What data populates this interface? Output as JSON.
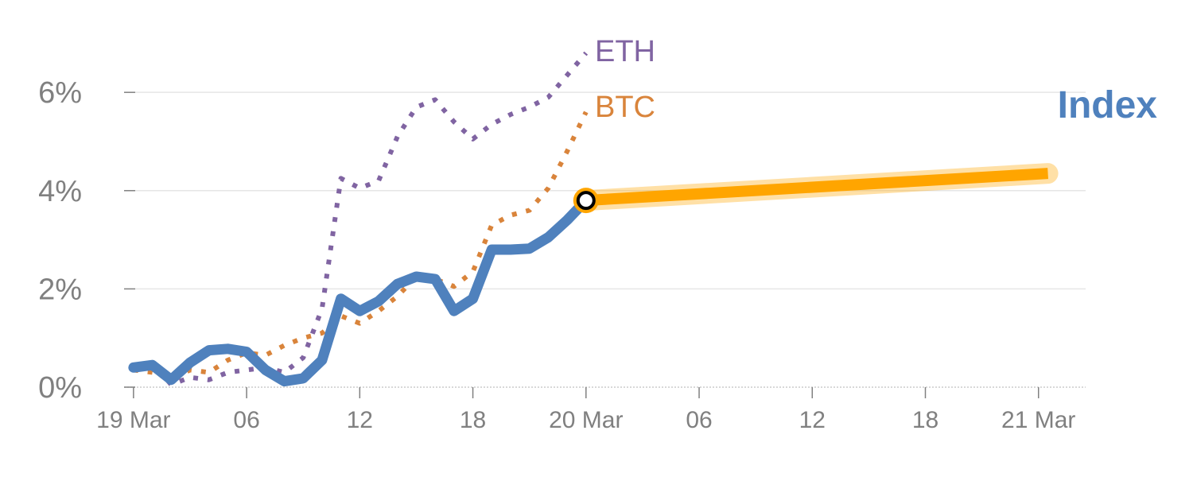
{
  "chart_data": {
    "type": "line",
    "x_tick_labels": [
      "19 Mar",
      "06",
      "12",
      "18",
      "20 Mar",
      "06",
      "12",
      "18",
      "21 Mar"
    ],
    "x_ticks_hours": [
      0,
      6,
      12,
      18,
      24,
      30,
      36,
      42,
      48
    ],
    "x_range_hours": [
      -0.5,
      50.5
    ],
    "y_tick_labels": [
      "0%",
      "2%",
      "4%",
      "6%"
    ],
    "y_ticks": [
      0,
      2,
      4,
      6
    ],
    "ylim": [
      0,
      7
    ],
    "grid": true,
    "colors": {
      "index": "#4f81bd",
      "btc": "#d9843b",
      "eth": "#8064a2",
      "forecast": "#ffa500",
      "grid": "#e6e6e6",
      "axis": "#cccccc",
      "tick_text": "#808080"
    },
    "series": [
      {
        "name": "ETH",
        "style": "dotted",
        "x": [
          0,
          1,
          2,
          3,
          4,
          5,
          6,
          7,
          8,
          9,
          10,
          11,
          12,
          13,
          14,
          15,
          16,
          17,
          18,
          19,
          20,
          21,
          22,
          23,
          24
        ],
        "y": [
          0.45,
          0.5,
          0.05,
          0.2,
          0.15,
          0.3,
          0.35,
          0.4,
          0.3,
          0.6,
          1.6,
          4.25,
          4.05,
          4.2,
          5.1,
          5.7,
          5.85,
          5.4,
          5.05,
          5.35,
          5.55,
          5.7,
          5.9,
          6.35,
          6.8
        ]
      },
      {
        "name": "BTC",
        "style": "dotted",
        "x": [
          0,
          1,
          2,
          3,
          4,
          5,
          6,
          7,
          8,
          9,
          10,
          11,
          12,
          13,
          14,
          15,
          16,
          17,
          18,
          19,
          20,
          21,
          22,
          23,
          24
        ],
        "y": [
          0.35,
          0.3,
          0.15,
          0.35,
          0.3,
          0.55,
          0.7,
          0.65,
          0.85,
          1.0,
          1.1,
          1.45,
          1.3,
          1.55,
          1.85,
          2.25,
          2.2,
          2.05,
          2.35,
          3.3,
          3.5,
          3.6,
          4.05,
          4.8,
          5.6
        ]
      },
      {
        "name": "Index",
        "style": "solid",
        "x": [
          0,
          1,
          2,
          3,
          4,
          5,
          6,
          7,
          8,
          9,
          10,
          11,
          12,
          13,
          14,
          15,
          16,
          17,
          18,
          19,
          20,
          21,
          22,
          23,
          24
        ],
        "y": [
          0.4,
          0.45,
          0.15,
          0.5,
          0.75,
          0.78,
          0.72,
          0.35,
          0.12,
          0.18,
          0.55,
          1.8,
          1.55,
          1.75,
          2.1,
          2.25,
          2.2,
          1.55,
          1.8,
          2.8,
          2.8,
          2.82,
          3.05,
          3.4,
          3.8
        ]
      }
    ],
    "forecast": {
      "x": [
        24,
        48.5
      ],
      "y": [
        3.8,
        4.35
      ]
    },
    "labels": {
      "eth": "ETH",
      "btc": "BTC",
      "index": "Index"
    }
  }
}
